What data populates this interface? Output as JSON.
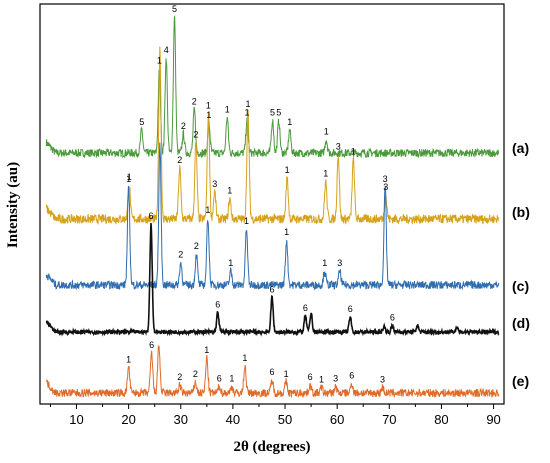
{
  "chart_data": {
    "type": "line",
    "xlabel": "2θ (degrees)",
    "ylabel": "Intensity (au)",
    "xlim": [
      3,
      92
    ],
    "xticks": [
      10,
      20,
      30,
      40,
      50,
      60,
      70,
      80,
      90
    ],
    "grid": false,
    "legend": "none",
    "series": [
      {
        "name": "(a)",
        "color": "#4a9a3c",
        "peaks": [
          {
            "x": 22.5,
            "h": 0.17,
            "label": "5"
          },
          {
            "x": 25.9,
            "h": 0.62,
            "label": "1"
          },
          {
            "x": 27.2,
            "h": 0.7,
            "label": "4"
          },
          {
            "x": 28.8,
            "h": 1.0,
            "label": "5"
          },
          {
            "x": 30.5,
            "h": 0.14,
            "label": "2"
          },
          {
            "x": 32.6,
            "h": 0.32,
            "label": "2"
          },
          {
            "x": 35.4,
            "h": 0.22,
            "label": "1"
          },
          {
            "x": 38.9,
            "h": 0.26,
            "label": "1"
          },
          {
            "x": 42.7,
            "h": 0.24,
            "label": "1"
          },
          {
            "x": 47.6,
            "h": 0.24,
            "label": "5"
          },
          {
            "x": 48.8,
            "h": 0.24,
            "label": "5"
          },
          {
            "x": 50.9,
            "h": 0.17,
            "label": "1"
          },
          {
            "x": 57.9,
            "h": 0.1,
            "label": "1"
          }
        ]
      },
      {
        "name": "(b)",
        "color": "#d6a21b",
        "peaks": [
          {
            "x": 20.1,
            "h": 0.2,
            "label": "1"
          },
          {
            "x": 26.0,
            "h": 1.0,
            "label": ""
          },
          {
            "x": 29.8,
            "h": 0.3,
            "label": "2"
          },
          {
            "x": 32.9,
            "h": 0.45,
            "label": "2"
          },
          {
            "x": 35.3,
            "h": 0.62,
            "label": "1"
          },
          {
            "x": 36.5,
            "h": 0.16,
            "label": "3"
          },
          {
            "x": 39.4,
            "h": 0.12,
            "label": "1"
          },
          {
            "x": 42.9,
            "h": 0.63,
            "label": "1"
          },
          {
            "x": 50.4,
            "h": 0.24,
            "label": "1"
          },
          {
            "x": 57.8,
            "h": 0.22,
            "label": "1"
          },
          {
            "x": 60.2,
            "h": 0.38,
            "label": "3"
          },
          {
            "x": 63.1,
            "h": 0.35,
            "label": "1"
          },
          {
            "x": 69.3,
            "h": 0.14,
            "label": "3"
          }
        ]
      },
      {
        "name": "(c)",
        "color": "#2f6db0",
        "peaks": [
          {
            "x": 20.0,
            "h": 0.7,
            "label": "1"
          },
          {
            "x": 26.0,
            "h": 1.0,
            "label": ""
          },
          {
            "x": 30.0,
            "h": 0.16,
            "label": "2"
          },
          {
            "x": 33.0,
            "h": 0.22,
            "label": "2"
          },
          {
            "x": 35.2,
            "h": 0.48,
            "label": "1"
          },
          {
            "x": 39.6,
            "h": 0.1,
            "label": "1"
          },
          {
            "x": 42.6,
            "h": 0.4,
            "label": "1"
          },
          {
            "x": 50.3,
            "h": 0.32,
            "label": "1"
          },
          {
            "x": 57.6,
            "h": 0.1,
            "label": "1"
          },
          {
            "x": 60.5,
            "h": 0.1,
            "label": "3"
          },
          {
            "x": 69.2,
            "h": 0.7,
            "label": "3"
          }
        ]
      },
      {
        "name": "(d)",
        "color": "#111111",
        "peaks": [
          {
            "x": 24.3,
            "h": 1.0,
            "label": "6"
          },
          {
            "x": 37.1,
            "h": 0.18,
            "label": "6"
          },
          {
            "x": 47.5,
            "h": 0.32,
            "label": "6"
          },
          {
            "x": 53.9,
            "h": 0.15,
            "label": "6"
          },
          {
            "x": 55.0,
            "h": 0.17,
            "label": ""
          },
          {
            "x": 62.5,
            "h": 0.14,
            "label": "6"
          },
          {
            "x": 69.0,
            "h": 0.05,
            "label": ""
          },
          {
            "x": 70.6,
            "h": 0.06,
            "label": "6"
          },
          {
            "x": 75.4,
            "h": 0.06,
            "label": ""
          },
          {
            "x": 83.0,
            "h": 0.05,
            "label": ""
          }
        ]
      },
      {
        "name": "(e)",
        "color": "#e06a28",
        "peaks": [
          {
            "x": 20.0,
            "h": 0.32,
            "label": "1"
          },
          {
            "x": 24.4,
            "h": 0.5,
            "label": "6"
          },
          {
            "x": 25.8,
            "h": 0.6,
            "label": ""
          },
          {
            "x": 29.8,
            "h": 0.1,
            "label": "2"
          },
          {
            "x": 32.8,
            "h": 0.14,
            "label": "2"
          },
          {
            "x": 35.0,
            "h": 0.44,
            "label": "1"
          },
          {
            "x": 37.4,
            "h": 0.08,
            "label": "6"
          },
          {
            "x": 39.8,
            "h": 0.08,
            "label": "1"
          },
          {
            "x": 42.3,
            "h": 0.34,
            "label": "1"
          },
          {
            "x": 47.5,
            "h": 0.16,
            "label": "6"
          },
          {
            "x": 50.2,
            "h": 0.14,
            "label": "1"
          },
          {
            "x": 54.8,
            "h": 0.1,
            "label": "6"
          },
          {
            "x": 57.0,
            "h": 0.07,
            "label": "1"
          },
          {
            "x": 59.7,
            "h": 0.08,
            "label": "3"
          },
          {
            "x": 62.8,
            "h": 0.12,
            "label": "6"
          },
          {
            "x": 68.7,
            "h": 0.07,
            "label": "3"
          }
        ]
      }
    ]
  }
}
